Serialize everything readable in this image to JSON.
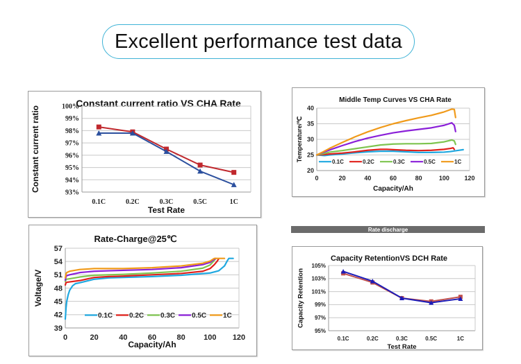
{
  "header": {
    "title": "Excellent performance test data"
  },
  "banner": {
    "label": "Rate discharge"
  },
  "chart_data": [
    {
      "id": "constant-current-ratio",
      "type": "line",
      "title": "Constant current  ratio VS CHA Rate",
      "xlabel": "Test Rate",
      "ylabel": "Constant current ratio",
      "categories": [
        "0.1C",
        "0.2C",
        "0.3C",
        "0.5C",
        "1C"
      ],
      "ylim": [
        93,
        100
      ],
      "yticks": [
        "93%",
        "94%",
        "95%",
        "96%",
        "97%",
        "98%",
        "99%",
        "100%"
      ],
      "grid": true,
      "series": [
        {
          "name": "red-square",
          "color": "#c0282d",
          "marker": "square",
          "values": [
            98.3,
            97.9,
            96.5,
            95.2,
            94.6
          ]
        },
        {
          "name": "blue-triangle",
          "color": "#2b4f9e",
          "marker": "triangle",
          "values": [
            97.8,
            97.8,
            96.3,
            94.7,
            93.6
          ]
        }
      ]
    },
    {
      "id": "middle-temp-curves",
      "type": "line",
      "title": "Middle Temp Curves VS CHA Rate",
      "xlabel": "Capacity/Ah",
      "ylabel": "Temperature/℃",
      "xlim": [
        0,
        120
      ],
      "ylim": [
        20,
        40
      ],
      "xticks": [
        "0",
        "20",
        "40",
        "60",
        "80",
        "100",
        "120"
      ],
      "yticks": [
        "20",
        "25",
        "30",
        "35",
        "40"
      ],
      "grid": true,
      "legend": "bottom-inside",
      "series": [
        {
          "name": "0.1C",
          "color": "#1fa8e0",
          "x": [
            0,
            3,
            6,
            10,
            20,
            30,
            40,
            50,
            60,
            70,
            80,
            90,
            100,
            105,
            110,
            115
          ],
          "y": [
            25.0,
            24.9,
            24.8,
            25.0,
            25.3,
            25.7,
            26.0,
            26.2,
            26.2,
            26.0,
            25.8,
            25.8,
            25.9,
            26.1,
            26.4,
            26.7
          ]
        },
        {
          "name": "0.2C",
          "color": "#e0201b",
          "x": [
            0,
            5,
            10,
            20,
            30,
            40,
            50,
            55,
            60,
            70,
            80,
            90,
            100,
            105,
            107,
            108
          ],
          "y": [
            25.0,
            25.1,
            25.3,
            25.6,
            26.0,
            26.5,
            26.8,
            26.8,
            26.7,
            26.5,
            26.4,
            26.5,
            26.8,
            27.1,
            27.3,
            26.8
          ]
        },
        {
          "name": "0.3C",
          "color": "#7ec44f",
          "x": [
            0,
            5,
            10,
            20,
            30,
            40,
            50,
            60,
            70,
            80,
            90,
            100,
            106,
            108,
            109
          ],
          "y": [
            25.0,
            25.4,
            25.9,
            26.4,
            27.0,
            27.6,
            28.2,
            28.5,
            28.6,
            28.6,
            28.7,
            29.2,
            29.8,
            29.5,
            28.4
          ]
        },
        {
          "name": "0.5C",
          "color": "#8a1fd8",
          "x": [
            0,
            5,
            10,
            20,
            30,
            40,
            50,
            60,
            70,
            80,
            90,
            100,
            106,
            108,
            109
          ],
          "y": [
            25.0,
            25.8,
            26.6,
            28.0,
            29.3,
            30.4,
            31.3,
            32.1,
            32.7,
            33.2,
            33.7,
            34.5,
            35.3,
            34.5,
            32.5
          ]
        },
        {
          "name": "1C",
          "color": "#f09a1a",
          "x": [
            0,
            5,
            10,
            20,
            30,
            40,
            50,
            60,
            70,
            80,
            90,
            100,
            106,
            108,
            109
          ],
          "y": [
            25.0,
            26.0,
            27.1,
            29.0,
            30.8,
            32.4,
            33.8,
            35.0,
            36.0,
            36.9,
            37.7,
            38.8,
            39.7,
            39.6,
            37.0
          ]
        }
      ]
    },
    {
      "id": "rate-charge",
      "type": "line",
      "title": "Rate-Charge@25℃",
      "xlabel": "Capacity/Ah",
      "ylabel": "Voltage/V",
      "xlim": [
        0,
        120
      ],
      "ylim": [
        39,
        57
      ],
      "xticks": [
        "0",
        "20",
        "40",
        "60",
        "80",
        "100",
        "120"
      ],
      "yticks": [
        "39",
        "42",
        "45",
        "48",
        "51",
        "54",
        "57"
      ],
      "grid": true,
      "legend": "bottom-inside",
      "series": [
        {
          "name": "0.1C",
          "color": "#1fa8e0",
          "x": [
            0,
            0.5,
            1,
            2,
            3,
            5,
            7,
            10,
            20,
            30,
            40,
            60,
            80,
            100,
            106,
            110,
            112,
            113,
            114,
            116
          ],
          "y": [
            41,
            43.5,
            45,
            46.5,
            47.5,
            48.5,
            49.0,
            49.2,
            50.0,
            50.3,
            50.4,
            50.6,
            50.9,
            51.4,
            51.9,
            53.0,
            54.2,
            54.7,
            54.7,
            54.7
          ]
        },
        {
          "name": "0.2C",
          "color": "#e0201b",
          "x": [
            0,
            0.5,
            1,
            3,
            10,
            20,
            30,
            40,
            60,
            80,
            95,
            100,
            103,
            105,
            106
          ],
          "y": [
            48.7,
            49.2,
            49.3,
            49.4,
            49.7,
            50.4,
            50.6,
            50.7,
            51.0,
            51.3,
            51.8,
            52.4,
            53.3,
            54.1,
            54.6
          ]
        },
        {
          "name": "0.3C",
          "color": "#7ec44f",
          "x": [
            0,
            0.5,
            1,
            3,
            10,
            20,
            30,
            40,
            60,
            80,
            95,
            100,
            102,
            104
          ],
          "y": [
            49.5,
            49.9,
            50.0,
            50.1,
            50.5,
            50.9,
            51.0,
            51.1,
            51.4,
            51.8,
            52.5,
            53.2,
            53.9,
            54.7
          ]
        },
        {
          "name": "0.5C",
          "color": "#8a1fd8",
          "x": [
            0,
            0.5,
            1,
            3,
            10,
            20,
            30,
            40,
            60,
            80,
            95,
            100,
            102,
            104
          ],
          "y": [
            49.8,
            50.6,
            50.8,
            51.0,
            51.5,
            51.8,
            51.9,
            52.0,
            52.2,
            52.6,
            53.3,
            53.8,
            54.3,
            54.7
          ]
        },
        {
          "name": "1C",
          "color": "#f09a1a",
          "x": [
            0,
            0.5,
            1,
            3,
            10,
            20,
            30,
            40,
            60,
            80,
            95,
            100,
            103,
            105,
            110
          ],
          "y": [
            50.3,
            51.2,
            51.5,
            51.8,
            52.2,
            52.4,
            52.4,
            52.4,
            52.6,
            53.0,
            53.6,
            54.1,
            54.7,
            54.7,
            54.7
          ]
        }
      ]
    },
    {
      "id": "capacity-retention",
      "type": "line",
      "title": "Capacity RetentionVS DCH  Rate",
      "xlabel": "Test Rate",
      "ylabel": "Capacity Retention",
      "categories": [
        "0.1C",
        "0.2C",
        "0.3C",
        "0.5C",
        "1C"
      ],
      "ylim": [
        95,
        105
      ],
      "yticks": [
        "95%",
        "97%",
        "99%",
        "101%",
        "103%",
        "105%"
      ],
      "grid": true,
      "series": [
        {
          "name": "red-square",
          "color": "#c0504d",
          "marker": "square",
          "values": [
            103.8,
            102.4,
            100.0,
            99.5,
            100.2
          ]
        },
        {
          "name": "blue-triangle",
          "color": "#1c1cb8",
          "marker": "triangle",
          "values": [
            104.1,
            102.6,
            100.0,
            99.3,
            99.9
          ]
        }
      ]
    }
  ]
}
